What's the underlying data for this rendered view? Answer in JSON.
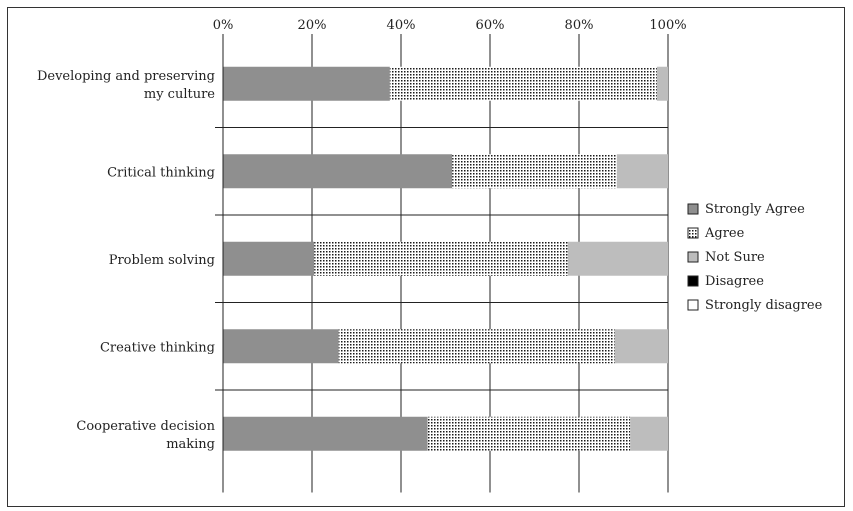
{
  "chart_data": {
    "type": "bar",
    "orientation": "horizontal",
    "stacked": true,
    "categories": [
      "Developing and preserving my culture",
      "Critical thinking",
      "Problem solving",
      "Creative thinking",
      "Cooperative decision making"
    ],
    "category_lines": [
      [
        "Developing and preserving",
        "my culture"
      ],
      [
        "Critical thinking"
      ],
      [
        "Problem solving"
      ],
      [
        "Creative thinking"
      ],
      [
        "Cooperative decision",
        "making"
      ]
    ],
    "series": [
      {
        "name": "Strongly Agree",
        "values": [
          37.5,
          51.5,
          20.5,
          26,
          46
        ]
      },
      {
        "name": "Agree",
        "values": [
          60,
          37,
          57,
          62,
          45.5
        ]
      },
      {
        "name": "Not Sure",
        "values": [
          2.5,
          11.5,
          22.5,
          12,
          8.5
        ]
      },
      {
        "name": "Disagree",
        "values": [
          0,
          0,
          0,
          0,
          0
        ]
      },
      {
        "name": "Strongly disagree",
        "values": [
          0,
          0,
          0,
          0,
          0
        ]
      }
    ],
    "x_ticks": [
      "0%",
      "20%",
      "40%",
      "60%",
      "80%",
      "100%"
    ],
    "xlim": [
      0,
      100
    ],
    "grid": true,
    "legend_position": "right",
    "colors": {
      "Strongly Agree": "#8f8f8f",
      "Agree": "dotted",
      "Not Sure": "#bdbdbd",
      "Disagree": "#000000",
      "Strongly disagree": "#ffffff"
    }
  }
}
